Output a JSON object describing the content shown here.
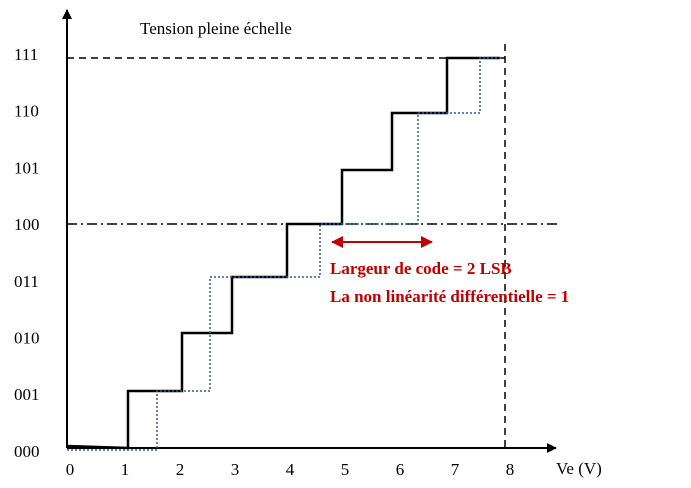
{
  "title": "Tension pleine échelle",
  "x_axis_label": "Ve (V)",
  "x_ticks": [
    "0",
    "1",
    "2",
    "3",
    "4",
    "5",
    "6",
    "7",
    "8"
  ],
  "y_ticks": [
    "000",
    "001",
    "010",
    "011",
    "100",
    "101",
    "110",
    "111"
  ],
  "annotations": [
    "Largeur de code = 2 LSB",
    "La non linéarité différentielle = 1"
  ]
}
